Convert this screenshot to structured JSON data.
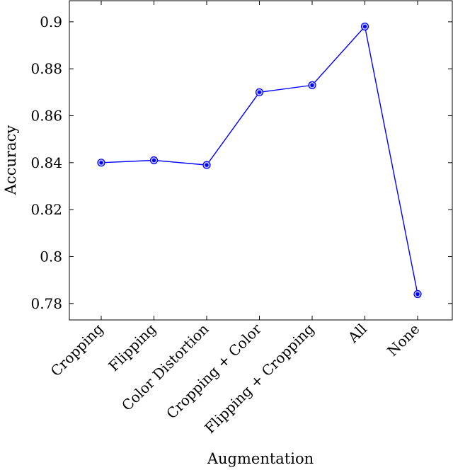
{
  "chart_data": {
    "type": "line",
    "categories": [
      "Cropping",
      "Flipping",
      "Color Distortion",
      "Cropping + Color",
      "Flipping + Cropping",
      "All",
      "None"
    ],
    "series": [
      {
        "values": [
          0.84,
          0.841,
          0.839,
          0.87,
          0.873,
          0.898,
          0.784
        ],
        "color": "#0000ff"
      }
    ],
    "xlabel": "Augmentation",
    "ylabel": "Accuracy",
    "ylim": [
      0.773,
      0.909
    ],
    "yticks": [
      0.78,
      0.8,
      0.82,
      0.84,
      0.86,
      0.88,
      0.9
    ],
    "ytick_labels": [
      "0.78",
      "0.8",
      "0.82",
      "0.84",
      "0.86",
      "0.88",
      "0.9"
    ],
    "grid": false,
    "legend": "none"
  }
}
